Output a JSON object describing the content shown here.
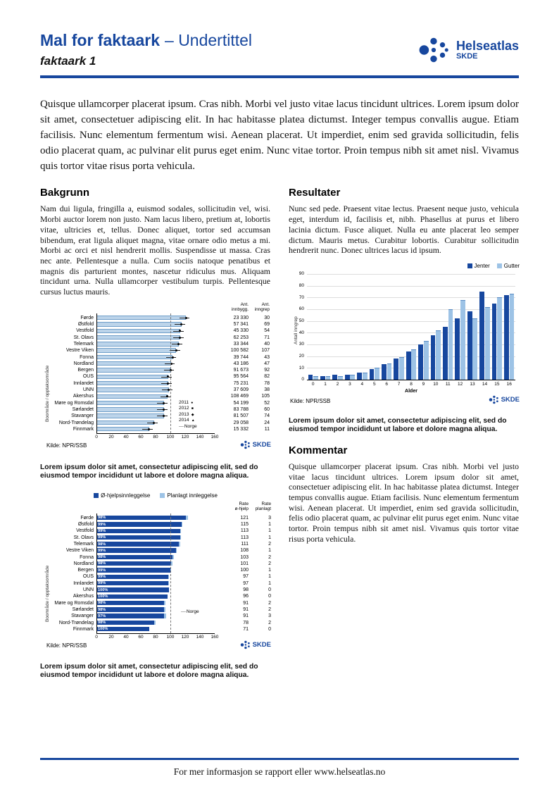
{
  "brand": {
    "helseatlas": "Helseatlas",
    "skde": "SKDE",
    "blue": "#17479e",
    "light_blue": "#9dc3e6",
    "bar_light": "#bcd4ea"
  },
  "header": {
    "title_main": "Mal for faktaark",
    "title_suffix": "– Undertittel",
    "subtitle": "faktaark 1"
  },
  "intro": "Quisque ullamcorper placerat ipsum. Cras nibh. Morbi vel justo vitae lacus tincidunt ultrices. Lorem ipsum dolor sit amet, consectetuer adipiscing elit. In hac habitasse platea dictumst. Integer tempus convallis augue. Etiam facilisis. Nunc elementum fermentum wisi. Aenean placerat. Ut imperdiet, enim sed gravida sollicitudin, felis odio placerat quam, ac pulvinar elit purus eget enim. Nunc vitae tortor. Proin tempus nibh sit amet nisl. Vivamus quis tortor vitae risus porta vehicula.",
  "sections": {
    "bakgrunn": {
      "heading": "Bakgrunn",
      "body": "Nam dui ligula, fringilla a, euismod sodales, sollicitudin vel, wisi. Morbi auctor lorem non justo. Nam lacus libero, pretium at, lobortis vitae, ultricies et, tellus. Donec aliquet, tortor sed accumsan bibendum, erat ligula aliquet magna, vitae ornare odio metus a mi. Morbi ac orci et nisl hendrerit mollis. Suspendisse ut massa. Cras nec ante. Pellentesque a nulla. Cum sociis natoque penatibus et magnis dis parturient montes, nascetur ridiculus mus. Aliquam tincidunt urna. Nulla ullamcorper vestibulum turpis. Pellentesque cursus luctus mauris."
    },
    "resultater": {
      "heading": "Resultater",
      "body": "Nunc sed pede. Praesent vitae lectus. Praesent neque justo, vehicula eget, interdum id, facilisis et, nibh. Phasellus at purus et libero lacinia dictum. Fusce aliquet. Nulla eu ante placerat leo semper dictum. Mauris metus. Curabitur lobortis. Curabitur sollicitudin hendrerit nunc. Donec ultrices lacus id ipsum."
    },
    "kommentar": {
      "heading": "Kommentar",
      "body": "Quisque ullamcorper placerat ipsum. Cras nibh. Morbi vel justo vitae lacus tincidunt ultrices. Lorem ipsum dolor sit amet, consectetuer adipiscing elit. In hac habitasse platea dictumst. Integer tempus convallis augue. Etiam facilisis. Nunc elementum fermentum wisi. Aenean placerat. Ut imperdiet, enim sed gravida sollicitudin, felis odio placerat quam, ac pulvinar elit purus eget enim. Nunc vitae tortor. Proin tempus nibh sit amet nisl. Vivamus quis tortor vitae risus porta vehicula."
    }
  },
  "figure_caption": "Lorem ipsum dolor sit amet, consectetur adipiscing elit, sed do eiusmod tempor incididunt ut labore et dolore magna aliqua.",
  "footer": {
    "text": "For mer informasjon se rapport eller www.helseatlas.no"
  },
  "chart_data": [
    {
      "id": "rate-per-boomrade",
      "type": "bar",
      "orientation": "horizontal",
      "ylabel": "Boområde / opptaksområde",
      "categories": [
        "Førde",
        "Østfold",
        "Vestfold",
        "St. Olavs",
        "Telemark",
        "Vestre Viken",
        "Fonna",
        "Nordland",
        "Bergen",
        "OUS",
        "Innlandet",
        "UNN",
        "Akershus",
        "Møre og Romsdal",
        "Sørlandet",
        "Stavanger",
        "Nord-Trøndelag",
        "Finnmark"
      ],
      "values": [
        121,
        115,
        113,
        113,
        111,
        108,
        103,
        101,
        100,
        97,
        97,
        98,
        96,
        91,
        91,
        91,
        78,
        71
      ],
      "col_headers": [
        [
          "Ant.",
          "innbygg."
        ],
        [
          "Ant.",
          "inngrep"
        ]
      ],
      "innbygg": [
        "23 330",
        "57 341",
        "45 330",
        "62 253",
        "33 344",
        "100 582",
        "39 744",
        "43 186",
        "91 673",
        "95 564",
        "75 231",
        "37 609",
        "108 469",
        "54 199",
        "83 788",
        "81 507",
        "29 058",
        "15 332"
      ],
      "inngrep": [
        30,
        69,
        54,
        71,
        40,
        107,
        43,
        47,
        92,
        82,
        78,
        38,
        105,
        52,
        60,
        74,
        24,
        11
      ],
      "xlim": [
        0,
        160
      ],
      "xticks": [
        0,
        20,
        40,
        60,
        80,
        100,
        120,
        140,
        160
      ],
      "legend_years": [
        "2011",
        "2012",
        "2013",
        "2014"
      ],
      "legend_ref": "Norge",
      "reference_value": 100,
      "source": "Kilde: NPR/SSB"
    },
    {
      "id": "innleggelse-rate",
      "type": "bar",
      "orientation": "horizontal",
      "stacked": true,
      "ylabel": "Boområde / opptaksområde",
      "categories": [
        "Førde",
        "Østfold",
        "Vestfold",
        "St. Olavs",
        "Telemark",
        "Vestre Viken",
        "Fonna",
        "Nordland",
        "Bergen",
        "OUS",
        "Innlandet",
        "UNN",
        "Akershus",
        "Møre og Romsdal",
        "Sørlandet",
        "Stavanger",
        "Nord-Trøndelag",
        "Finnmark"
      ],
      "series": [
        {
          "name": "Ø-hjelpsinnleggelse",
          "values": [
            121,
            115,
            113,
            113,
            111,
            108,
            103,
            101,
            100,
            97,
            97,
            98,
            96,
            91,
            91,
            91,
            78,
            71
          ]
        },
        {
          "name": "Planlagt innleggelse",
          "values": [
            3,
            1,
            1,
            1,
            2,
            1,
            2,
            2,
            1,
            1,
            1,
            0,
            0,
            2,
            2,
            3,
            2,
            0
          ]
        }
      ],
      "pct_labels": [
        "98%",
        "99%",
        "99%",
        "99%",
        "98%",
        "99%",
        "98%",
        "98%",
        "99%",
        "99%",
        "99%",
        "100%",
        "100%",
        "98%",
        "98%",
        "97%",
        "98%",
        "100%"
      ],
      "col_headers": [
        [
          "Rate",
          "ø-hjelp"
        ],
        [
          "Rate",
          "planlagt"
        ]
      ],
      "xlim": [
        0,
        160
      ],
      "xticks": [
        0,
        20,
        40,
        60,
        80,
        100,
        120,
        140,
        160
      ],
      "legend_ref": "Norge",
      "reference_value": 100,
      "source": "Kilde: NPR/SSB"
    },
    {
      "id": "inngrep-etter-alder",
      "type": "bar",
      "orientation": "vertical",
      "xlabel": "Alder",
      "ylabel": "Antall inngrep",
      "categories": [
        "0",
        "1",
        "2",
        "3",
        "4",
        "5",
        "6",
        "7",
        "8",
        "9",
        "10",
        "11",
        "12",
        "13",
        "14",
        "15",
        "16"
      ],
      "series": [
        {
          "name": "Jenter",
          "values": [
            4,
            3,
            4,
            4,
            6,
            9,
            13,
            18,
            24,
            30,
            38,
            45,
            52,
            58,
            75,
            65,
            72
          ]
        },
        {
          "name": "Gutter",
          "values": [
            3,
            3,
            3,
            4,
            6,
            10,
            14,
            19,
            26,
            33,
            42,
            60,
            68,
            52,
            62,
            70,
            73
          ]
        }
      ],
      "ylim": [
        0,
        90
      ],
      "yticks": [
        0,
        10,
        20,
        30,
        40,
        50,
        60,
        70,
        80,
        90
      ],
      "legend_position": "top-right",
      "source": "Kilde: NPR/SSB"
    }
  ]
}
